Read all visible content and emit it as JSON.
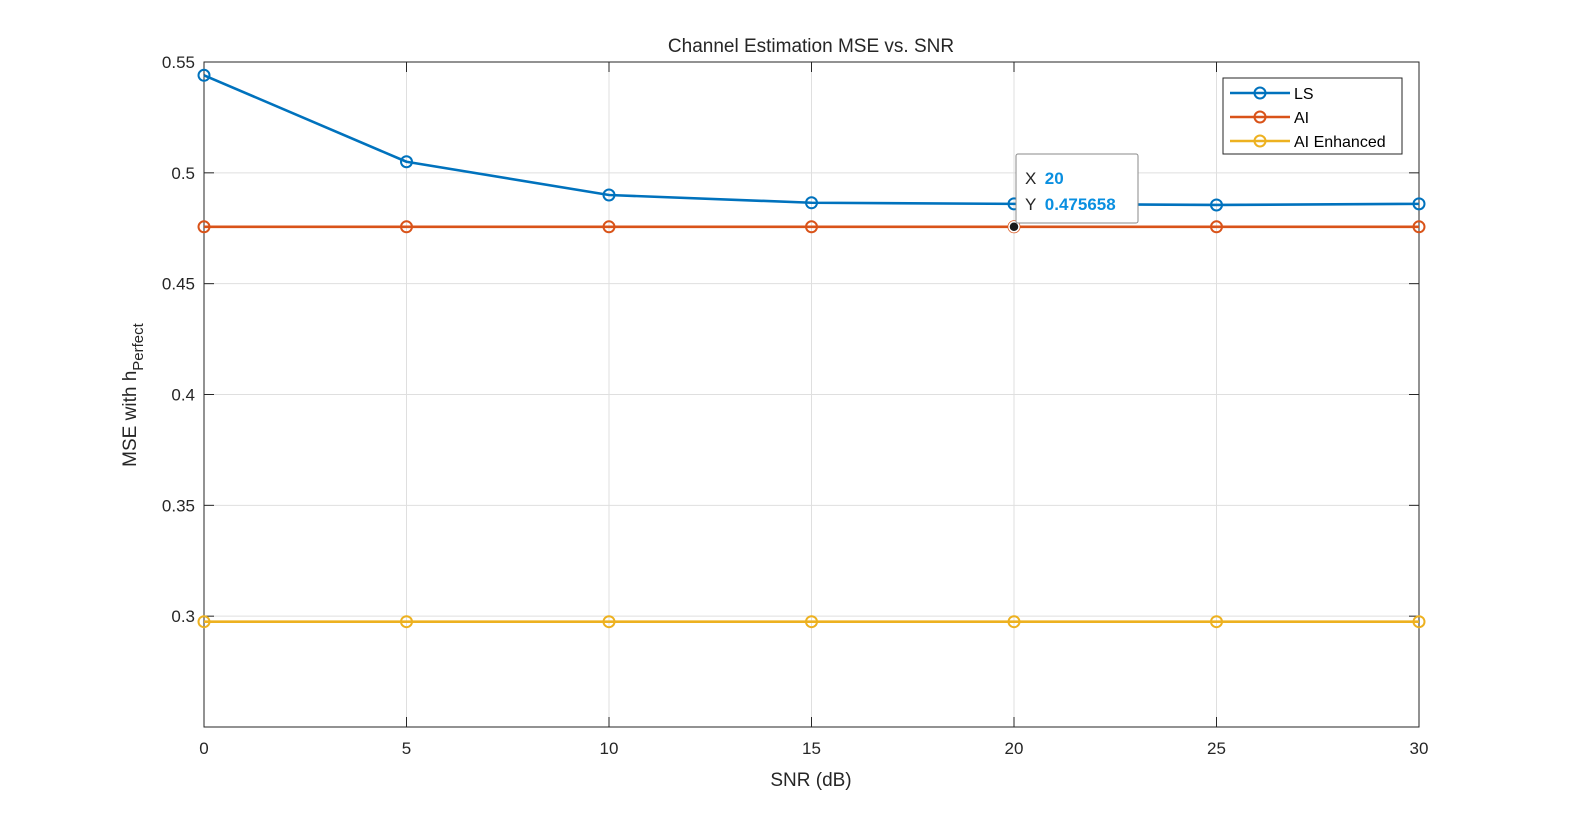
{
  "chart_data": {
    "type": "line",
    "title": "Channel Estimation MSE vs. SNR",
    "xlabel": "SNR (dB)",
    "ylabel": "MSE with h",
    "ylabel_subscript": "Perfect",
    "x": [
      0,
      5,
      10,
      15,
      20,
      25,
      30
    ],
    "xlim": [
      0,
      30
    ],
    "ylim": [
      0.25,
      0.55
    ],
    "xticks": [
      0,
      5,
      10,
      15,
      20,
      25,
      30
    ],
    "xtick_labels": [
      "0",
      "5",
      "10",
      "15",
      "20",
      "25",
      "30"
    ],
    "yticks": [
      0.3,
      0.35,
      0.4,
      0.45,
      0.5,
      0.55
    ],
    "ytick_labels": [
      "0.3",
      "0.35",
      "0.4",
      "0.45",
      "0.5",
      "0.55"
    ],
    "grid": true,
    "legend_position": "top-right",
    "marker": "circle",
    "series": [
      {
        "name": "LS",
        "color": "#0072BD",
        "values": [
          0.544,
          0.505,
          0.49,
          0.4865,
          0.486,
          0.4855,
          0.486
        ]
      },
      {
        "name": "AI",
        "color": "#D95319",
        "values": [
          0.475658,
          0.475658,
          0.475658,
          0.475658,
          0.475658,
          0.475658,
          0.475658
        ]
      },
      {
        "name": "AI Enhanced",
        "color": "#EDB120",
        "values": [
          0.2975,
          0.2975,
          0.2975,
          0.2975,
          0.2975,
          0.2975,
          0.2975
        ]
      }
    ],
    "datatip": {
      "x_key": "X",
      "x_value": "20",
      "y_key": "Y",
      "y_value": "0.475658",
      "point": [
        20,
        0.475658
      ]
    }
  }
}
